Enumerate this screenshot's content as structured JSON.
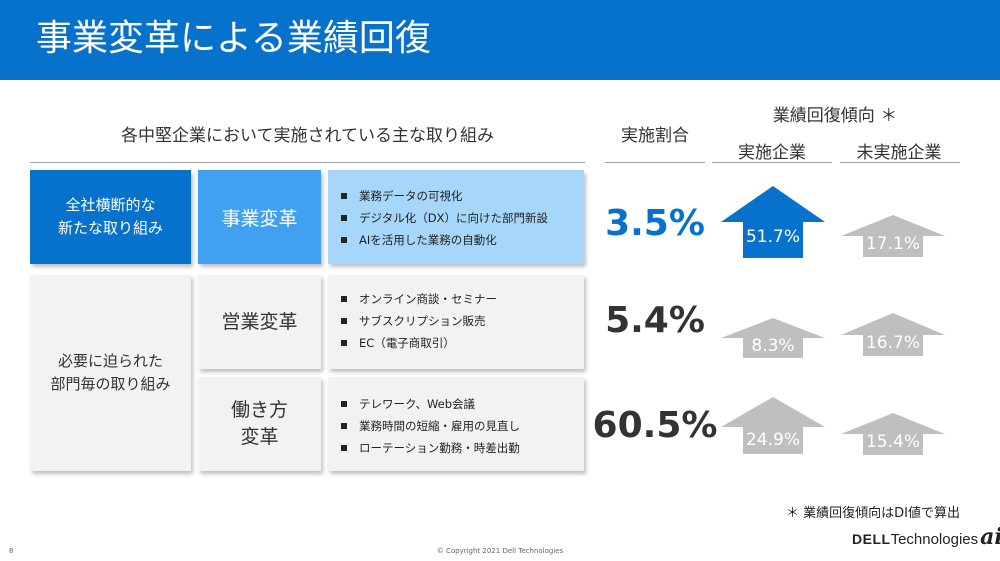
{
  "title": "事業変革による業績回復",
  "headers": {
    "initiatives": "各中堅企業において実施されている主な取り組み",
    "ratio": "実施割合",
    "trend": "業績回復傾向 ＊",
    "implemented": "実施企業",
    "not_implemented": "未実施企業"
  },
  "categories": {
    "company_wide": "全社横断的な\n新たな取り組み",
    "department": "必要に迫られた\n部門毎の取り組み"
  },
  "rows": [
    {
      "name": "事業変革",
      "bullets": [
        "業務データの可視化",
        "デジタル化（DX）に向けた部門新設",
        "AIを活用した業務の自動化"
      ],
      "ratio": "3.5%",
      "implemented": "51.7%",
      "not_implemented": "17.1%"
    },
    {
      "name": "営業変革",
      "bullets": [
        "オンライン商談・セミナー",
        "サブスクリプション販売",
        "EC（電子商取引）"
      ],
      "ratio": "5.4%",
      "implemented": "8.3%",
      "not_implemented": "16.7%"
    },
    {
      "name": "働き方\n変革",
      "bullets": [
        "テレワーク、Web会議",
        "業務時間の短縮・雇用の見直し",
        "ローテーション勤務・時差出勤"
      ],
      "ratio": "60.5%",
      "implemented": "24.9%",
      "not_implemented": "15.4%"
    }
  ],
  "footnote": "＊ 業績回復傾向はDI値で算出",
  "page_number": "8",
  "copyright": "© Copyright 2021 Dell Technologies",
  "logo": {
    "dell": "DELL",
    "technologies": "Technologies",
    "ai": "ai"
  },
  "colors": {
    "title_bar": "#0672cb",
    "highlight_blue": "#0672cb",
    "mid_blue": "#41a0f0",
    "light_blue": "#a6d6fa",
    "gray_arrow": "#bfbfbf",
    "gray_box": "#f2f2f2"
  }
}
